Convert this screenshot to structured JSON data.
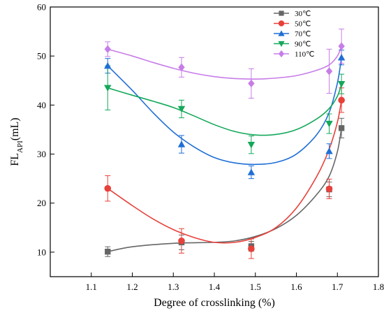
{
  "chart_data": {
    "type": "scatter",
    "xlabel": "Degree of crosslinking (%)",
    "ylabel_main": "FL",
    "ylabel_sub": "API",
    "ylabel_unit": "(mL)",
    "xlim": [
      1.0,
      1.8
    ],
    "ylim": [
      5,
      60
    ],
    "xticks": [
      "1.1",
      "1.2",
      "1.3",
      "1.4",
      "1.5",
      "1.6",
      "1.7",
      "1.8"
    ],
    "xtick_values": [
      1.1,
      1.2,
      1.3,
      1.4,
      1.5,
      1.6,
      1.7,
      1.8
    ],
    "yticks": [
      "10",
      "20",
      "30",
      "40",
      "50",
      "60"
    ],
    "ytick_values": [
      10,
      20,
      30,
      40,
      50,
      60
    ],
    "legend_position": "top-right",
    "grid": false,
    "x": [
      1.14,
      1.32,
      1.49,
      1.68,
      1.71
    ],
    "series": [
      {
        "name": "30℃",
        "color": "#666666",
        "marker": "square",
        "values": [
          10.1,
          12.0,
          11.2,
          22.8,
          35.3
        ],
        "errors": [
          1.0,
          1.5,
          1.0,
          1.5,
          2.0
        ],
        "fit": [
          [
            1.14,
            10.1
          ],
          [
            1.2,
            11.1
          ],
          [
            1.3,
            11.8
          ],
          [
            1.4,
            12.0
          ],
          [
            1.45,
            12.3
          ],
          [
            1.5,
            13.2
          ],
          [
            1.55,
            14.8
          ],
          [
            1.6,
            17.5
          ],
          [
            1.65,
            21.8
          ],
          [
            1.68,
            25.5
          ],
          [
            1.7,
            30.5
          ],
          [
            1.71,
            35.3
          ]
        ]
      },
      {
        "name": "50℃",
        "color": "#e8403a",
        "marker": "circle",
        "values": [
          23.0,
          12.3,
          10.7,
          22.9,
          41.0
        ],
        "errors": [
          2.6,
          2.5,
          2.0,
          2.0,
          2.5
        ],
        "fit": [
          [
            1.14,
            23.0
          ],
          [
            1.2,
            19.5
          ],
          [
            1.25,
            16.8
          ],
          [
            1.3,
            14.6
          ],
          [
            1.35,
            13.0
          ],
          [
            1.4,
            12.0
          ],
          [
            1.45,
            12.0
          ],
          [
            1.5,
            13.0
          ],
          [
            1.55,
            15.0
          ],
          [
            1.6,
            19.0
          ],
          [
            1.65,
            25.5
          ],
          [
            1.68,
            31.0
          ],
          [
            1.7,
            36.5
          ],
          [
            1.71,
            41.0
          ]
        ]
      },
      {
        "name": "70℃",
        "color": "#1f6fd6",
        "marker": "triangle-up",
        "values": [
          48.0,
          32.0,
          26.3,
          30.6,
          49.7
        ],
        "errors": [
          1.5,
          1.8,
          1.3,
          1.5,
          1.5
        ],
        "fit": [
          [
            1.14,
            48.0
          ],
          [
            1.2,
            43.0
          ],
          [
            1.25,
            38.5
          ],
          [
            1.3,
            34.5
          ],
          [
            1.35,
            31.5
          ],
          [
            1.4,
            29.3
          ],
          [
            1.45,
            28.2
          ],
          [
            1.5,
            27.9
          ],
          [
            1.55,
            28.3
          ],
          [
            1.6,
            30.0
          ],
          [
            1.65,
            34.0
          ],
          [
            1.68,
            38.5
          ],
          [
            1.7,
            44.5
          ],
          [
            1.71,
            49.7
          ]
        ]
      },
      {
        "name": "90℃",
        "color": "#14a85a",
        "marker": "triangle-down",
        "values": [
          43.5,
          39.2,
          31.9,
          36.2,
          44.3
        ],
        "errors": [
          4.5,
          1.8,
          1.8,
          2.0,
          2.0
        ],
        "fit": [
          [
            1.14,
            43.5
          ],
          [
            1.2,
            42.0
          ],
          [
            1.25,
            40.8
          ],
          [
            1.3,
            39.5
          ],
          [
            1.35,
            37.8
          ],
          [
            1.4,
            36.0
          ],
          [
            1.45,
            34.6
          ],
          [
            1.5,
            33.9
          ],
          [
            1.55,
            34.0
          ],
          [
            1.6,
            35.0
          ],
          [
            1.65,
            37.2
          ],
          [
            1.68,
            39.3
          ],
          [
            1.7,
            41.8
          ],
          [
            1.71,
            44.3
          ]
        ]
      },
      {
        "name": "110℃",
        "color": "#c77de8",
        "marker": "diamond",
        "values": [
          51.4,
          47.7,
          44.4,
          46.9,
          52.0
        ],
        "errors": [
          1.5,
          2.0,
          3.0,
          4.5,
          3.5
        ],
        "fit": [
          [
            1.14,
            51.4
          ],
          [
            1.2,
            50.0
          ],
          [
            1.25,
            48.7
          ],
          [
            1.3,
            47.5
          ],
          [
            1.35,
            46.5
          ],
          [
            1.4,
            45.8
          ],
          [
            1.45,
            45.4
          ],
          [
            1.5,
            45.3
          ],
          [
            1.55,
            45.5
          ],
          [
            1.6,
            46.0
          ],
          [
            1.65,
            47.1
          ],
          [
            1.68,
            48.2
          ],
          [
            1.7,
            50.0
          ],
          [
            1.71,
            52.0
          ]
        ]
      }
    ]
  }
}
